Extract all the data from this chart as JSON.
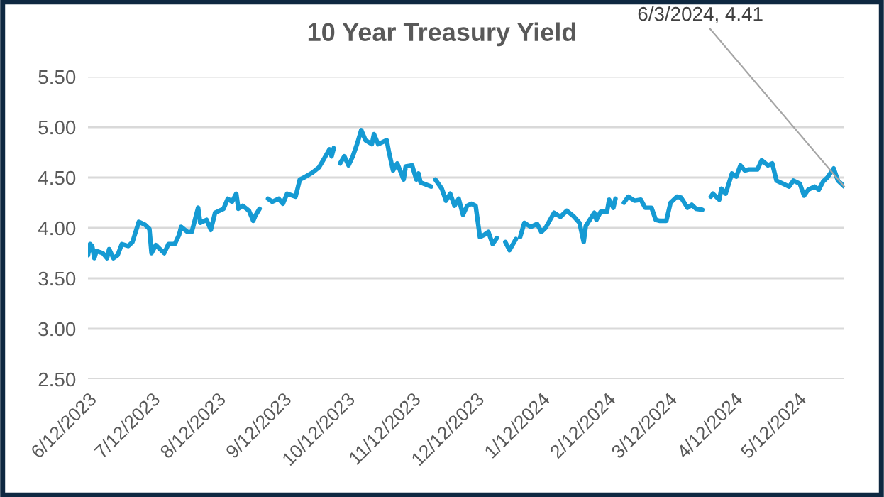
{
  "chart_data": {
    "type": "line",
    "title": "10 Year Treasury Yield",
    "x": [
      "2023-06-12",
      "2023-06-13",
      "2023-06-14",
      "2023-06-15",
      "2023-06-16",
      "2023-06-19",
      "2023-06-21",
      "2023-06-22",
      "2023-06-24",
      "2023-06-26",
      "2023-06-28",
      "2023-07-01",
      "2023-07-03",
      "2023-07-06",
      "2023-07-09",
      "2023-07-11",
      "2023-07-12",
      "2023-07-14",
      "2023-07-18",
      "2023-07-20",
      "2023-07-23",
      "2023-07-25",
      "2023-07-26",
      "2023-07-29",
      "2023-07-31",
      "2023-08-03",
      "2023-08-04",
      "2023-08-07",
      "2023-08-09",
      "2023-08-11",
      "2023-08-15",
      "2023-08-17",
      "2023-08-19",
      "2023-08-21",
      "2023-08-22",
      "2023-08-24",
      "2023-08-27",
      "2023-08-29",
      "2023-08-30",
      "2023-09-01",
      "2023-09-02",
      "2023-09-05",
      "2023-09-07",
      "2023-09-10",
      "2023-09-12",
      "2023-09-14",
      "2023-09-18",
      "2023-09-20",
      "2023-09-22",
      "2023-09-26",
      "2023-09-29",
      "2023-10-01",
      "2023-10-04",
      "2023-10-05",
      "2023-10-06",
      "2023-10-07",
      "2023-10-09",
      "2023-10-11",
      "2023-10-13",
      "2023-10-15",
      "2023-10-17",
      "2023-10-19",
      "2023-10-21",
      "2023-10-24",
      "2023-10-25",
      "2023-10-27",
      "2023-10-31",
      "2023-11-01",
      "2023-11-03",
      "2023-11-05",
      "2023-11-08",
      "2023-11-09",
      "2023-11-12",
      "2023-11-14",
      "2023-11-15",
      "2023-11-16",
      "2023-11-21",
      "2023-11-22",
      "2023-11-23",
      "2023-11-26",
      "2023-11-28",
      "2023-11-30",
      "2023-12-02",
      "2023-12-04",
      "2023-12-06",
      "2023-12-08",
      "2023-12-10",
      "2023-12-12",
      "2023-12-14",
      "2023-12-16",
      "2023-12-18",
      "2023-12-20",
      "2023-12-22",
      "2023-12-23",
      "2023-12-26",
      "2023-12-28",
      "2023-12-31",
      "2024-01-01",
      "2024-01-02",
      "2024-01-04",
      "2024-01-07",
      "2024-01-10",
      "2024-01-12",
      "2024-01-14",
      "2024-01-18",
      "2024-01-21",
      "2024-01-24",
      "2024-01-27",
      "2024-01-30",
      "2024-02-01",
      "2024-02-02",
      "2024-02-06",
      "2024-02-07",
      "2024-02-09",
      "2024-02-12",
      "2024-02-13",
      "2024-02-15",
      "2024-02-16",
      "2024-02-17",
      "2024-02-20",
      "2024-02-22",
      "2024-02-25",
      "2024-02-28",
      "2024-03-01",
      "2024-03-04",
      "2024-03-06",
      "2024-03-08",
      "2024-03-11",
      "2024-03-13",
      "2024-03-16",
      "2024-03-18",
      "2024-03-21",
      "2024-03-23",
      "2024-03-25",
      "2024-03-28",
      "2024-03-29",
      "2024-04-01",
      "2024-04-02",
      "2024-04-05",
      "2024-04-06",
      "2024-04-08",
      "2024-04-11",
      "2024-04-13",
      "2024-04-15",
      "2024-04-17",
      "2024-04-19",
      "2024-04-23",
      "2024-04-25",
      "2024-04-28",
      "2024-04-30",
      "2024-05-02",
      "2024-05-05",
      "2024-05-08",
      "2024-05-10",
      "2024-05-13",
      "2024-05-15",
      "2024-05-17",
      "2024-05-20",
      "2024-05-22",
      "2024-05-24",
      "2024-05-26",
      "2024-05-29",
      "2024-05-31",
      "2024-06-03"
    ],
    "series": [
      {
        "color": "#159ad3",
        "values": [
          3.73,
          3.84,
          3.82,
          3.7,
          3.77,
          3.75,
          3.7,
          3.79,
          3.7,
          3.73,
          3.84,
          3.82,
          3.86,
          4.06,
          4.03,
          3.99,
          3.75,
          3.83,
          3.75,
          3.84,
          3.84,
          3.93,
          4.01,
          3.96,
          3.96,
          4.2,
          4.05,
          4.08,
          3.98,
          4.15,
          4.19,
          4.29,
          4.26,
          4.34,
          4.19,
          4.22,
          4.17,
          4.07,
          4.12,
          4.19,
          null,
          4.29,
          4.26,
          4.29,
          4.24,
          4.34,
          4.31,
          4.48,
          4.5,
          4.55,
          4.6,
          4.67,
          4.78,
          4.71,
          4.79,
          null,
          4.64,
          4.71,
          4.62,
          4.71,
          4.83,
          4.97,
          4.87,
          4.83,
          4.93,
          4.83,
          4.87,
          4.76,
          4.57,
          4.64,
          4.48,
          4.61,
          4.62,
          4.48,
          4.54,
          4.45,
          4.41,
          null,
          4.48,
          4.39,
          4.27,
          4.34,
          4.22,
          4.29,
          4.13,
          4.22,
          4.24,
          4.22,
          3.91,
          3.93,
          3.96,
          3.84,
          3.9,
          null,
          3.86,
          3.78,
          3.89,
          null,
          3.91,
          4.05,
          4.01,
          4.04,
          3.96,
          4.0,
          4.15,
          4.11,
          4.17,
          4.12,
          4.05,
          3.86,
          4.02,
          4.15,
          4.08,
          4.16,
          4.16,
          4.28,
          4.2,
          4.29,
          null,
          4.25,
          4.31,
          4.27,
          4.28,
          4.2,
          4.2,
          4.08,
          4.07,
          4.07,
          4.25,
          4.31,
          4.3,
          4.2,
          4.23,
          4.19,
          4.18,
          null,
          4.31,
          4.34,
          4.28,
          4.39,
          4.34,
          4.54,
          4.51,
          4.62,
          4.57,
          4.58,
          4.58,
          4.67,
          4.62,
          4.64,
          4.47,
          4.44,
          4.41,
          4.47,
          4.44,
          4.32,
          4.38,
          4.41,
          4.38,
          4.46,
          4.5,
          4.59,
          4.47,
          4.41
        ]
      }
    ],
    "xlim": [
      "2023-06-12",
      "2024-06-03"
    ],
    "xticks": [
      {
        "value": "2023-06-12",
        "label": "6/12/2023"
      },
      {
        "value": "2023-07-12",
        "label": "7/12/2023"
      },
      {
        "value": "2023-08-12",
        "label": "8/12/2023"
      },
      {
        "value": "2023-09-12",
        "label": "9/12/2023"
      },
      {
        "value": "2023-10-12",
        "label": "10/12/2023"
      },
      {
        "value": "2023-11-12",
        "label": "11/12/2023"
      },
      {
        "value": "2023-12-12",
        "label": "12/12/2023"
      },
      {
        "value": "2024-01-12",
        "label": "1/12/2024"
      },
      {
        "value": "2024-02-12",
        "label": "2/12/2024"
      },
      {
        "value": "2024-03-12",
        "label": "3/12/2024"
      },
      {
        "value": "2024-04-12",
        "label": "4/12/2024"
      },
      {
        "value": "2024-05-12",
        "label": "5/12/2024"
      }
    ],
    "ylim": [
      2.5,
      5.5
    ],
    "yticks": [
      {
        "value": 2.5,
        "label": "2.50"
      },
      {
        "value": 3,
        "label": "3.00"
      },
      {
        "value": 3.5,
        "label": "3.50"
      },
      {
        "value": 4,
        "label": "4.00"
      },
      {
        "value": 4.5,
        "label": "4.50"
      },
      {
        "value": 5,
        "label": "5.00"
      },
      {
        "value": 5.5,
        "label": "5.50"
      }
    ],
    "grid": "y",
    "line_style": "solid",
    "marker": "none",
    "annotations": [
      {
        "text": "6/3/2024, 4.41",
        "x": "2024-06-03",
        "y": 4.41
      }
    ]
  }
}
